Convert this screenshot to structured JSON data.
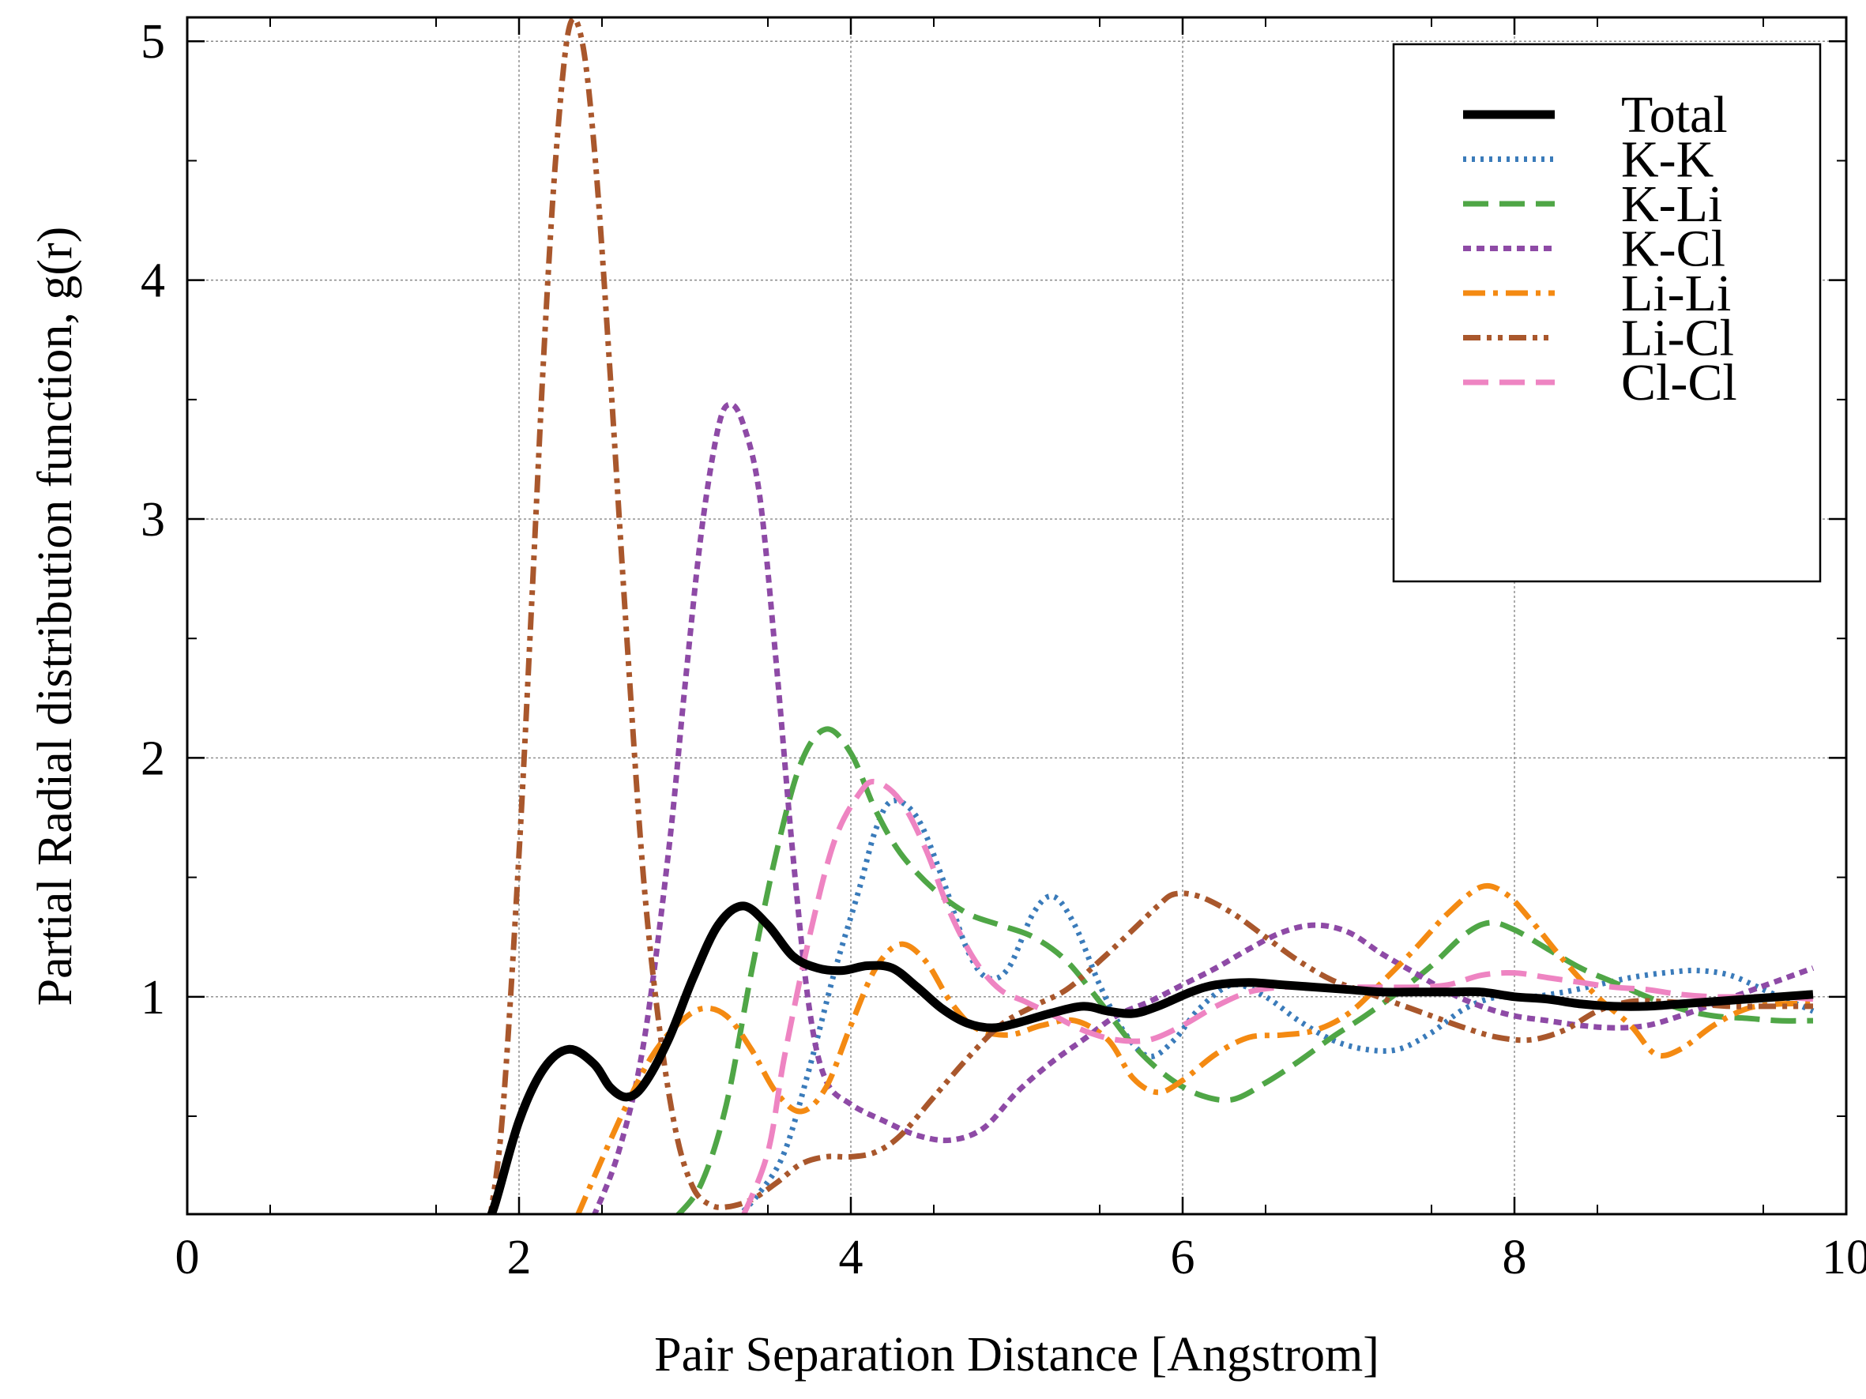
{
  "chart_data": {
    "type": "line",
    "title": "",
    "xlabel": "Pair Separation Distance [Angstrom]",
    "ylabel": "Partial Radial distribution function, g(r)",
    "xlim": [
      0,
      10
    ],
    "ylim": [
      0.09,
      5.1
    ],
    "xticks": [
      0,
      2,
      4,
      6,
      8,
      10
    ],
    "xtick_labels": [
      "0",
      "2",
      "4",
      "6",
      "8",
      "10"
    ],
    "yticks": [
      1,
      2,
      3,
      4,
      5
    ],
    "ytick_labels": [
      "1",
      "2",
      "3",
      "4",
      "5"
    ],
    "grid": true,
    "legend_position": "top-right",
    "series": [
      {
        "name": "Total",
        "color": "#000000",
        "style": "solid",
        "points": [
          [
            1.78,
            0.02
          ],
          [
            1.85,
            0.12
          ],
          [
            2.0,
            0.48
          ],
          [
            2.15,
            0.7
          ],
          [
            2.3,
            0.78
          ],
          [
            2.45,
            0.72
          ],
          [
            2.55,
            0.62
          ],
          [
            2.65,
            0.58
          ],
          [
            2.75,
            0.63
          ],
          [
            2.9,
            0.82
          ],
          [
            3.05,
            1.08
          ],
          [
            3.2,
            1.3
          ],
          [
            3.35,
            1.38
          ],
          [
            3.5,
            1.3
          ],
          [
            3.65,
            1.17
          ],
          [
            3.8,
            1.12
          ],
          [
            3.95,
            1.11
          ],
          [
            4.1,
            1.13
          ],
          [
            4.25,
            1.12
          ],
          [
            4.4,
            1.04
          ],
          [
            4.55,
            0.95
          ],
          [
            4.7,
            0.89
          ],
          [
            4.85,
            0.87
          ],
          [
            5.0,
            0.89
          ],
          [
            5.2,
            0.93
          ],
          [
            5.4,
            0.96
          ],
          [
            5.55,
            0.94
          ],
          [
            5.7,
            0.93
          ],
          [
            5.85,
            0.96
          ],
          [
            6.05,
            1.02
          ],
          [
            6.2,
            1.05
          ],
          [
            6.4,
            1.06
          ],
          [
            6.6,
            1.05
          ],
          [
            6.8,
            1.04
          ],
          [
            7.0,
            1.03
          ],
          [
            7.2,
            1.02
          ],
          [
            7.4,
            1.02
          ],
          [
            7.6,
            1.02
          ],
          [
            7.8,
            1.02
          ],
          [
            8.0,
            1.0
          ],
          [
            8.2,
            0.99
          ],
          [
            8.4,
            0.97
          ],
          [
            8.6,
            0.96
          ],
          [
            8.8,
            0.96
          ],
          [
            9.0,
            0.97
          ],
          [
            9.2,
            0.98
          ],
          [
            9.4,
            0.99
          ],
          [
            9.6,
            1.0
          ],
          [
            9.8,
            1.01
          ]
        ]
      },
      {
        "name": "K-K",
        "color": "#3a7bba",
        "style": "dotted",
        "points": [
          [
            3.28,
            0.05
          ],
          [
            3.45,
            0.18
          ],
          [
            3.6,
            0.35
          ],
          [
            3.75,
            0.7
          ],
          [
            3.9,
            1.1
          ],
          [
            4.05,
            1.45
          ],
          [
            4.15,
            1.7
          ],
          [
            4.25,
            1.82
          ],
          [
            4.4,
            1.75
          ],
          [
            4.55,
            1.5
          ],
          [
            4.7,
            1.2
          ],
          [
            4.82,
            1.08
          ],
          [
            4.95,
            1.12
          ],
          [
            5.1,
            1.35
          ],
          [
            5.22,
            1.42
          ],
          [
            5.35,
            1.3
          ],
          [
            5.5,
            1.05
          ],
          [
            5.65,
            0.85
          ],
          [
            5.8,
            0.75
          ],
          [
            5.95,
            0.82
          ],
          [
            6.1,
            0.95
          ],
          [
            6.3,
            1.05
          ],
          [
            6.5,
            1.0
          ],
          [
            6.7,
            0.9
          ],
          [
            6.9,
            0.82
          ],
          [
            7.1,
            0.78
          ],
          [
            7.3,
            0.78
          ],
          [
            7.5,
            0.85
          ],
          [
            7.7,
            0.95
          ],
          [
            7.9,
            1.0
          ],
          [
            8.1,
            1.0
          ],
          [
            8.3,
            1.02
          ],
          [
            8.5,
            1.05
          ],
          [
            8.7,
            1.08
          ],
          [
            8.9,
            1.1
          ],
          [
            9.1,
            1.11
          ],
          [
            9.3,
            1.09
          ],
          [
            9.5,
            1.03
          ],
          [
            9.7,
            0.97
          ],
          [
            9.8,
            0.94
          ]
        ]
      },
      {
        "name": "K-Li",
        "color": "#4fa646",
        "style": "dashed",
        "points": [
          [
            2.95,
            0.08
          ],
          [
            3.1,
            0.22
          ],
          [
            3.25,
            0.55
          ],
          [
            3.4,
            1.1
          ],
          [
            3.55,
            1.6
          ],
          [
            3.7,
            1.98
          ],
          [
            3.85,
            2.12
          ],
          [
            4.0,
            2.02
          ],
          [
            4.15,
            1.78
          ],
          [
            4.3,
            1.6
          ],
          [
            4.5,
            1.45
          ],
          [
            4.7,
            1.35
          ],
          [
            4.9,
            1.3
          ],
          [
            5.1,
            1.25
          ],
          [
            5.3,
            1.15
          ],
          [
            5.5,
            0.98
          ],
          [
            5.7,
            0.8
          ],
          [
            5.9,
            0.67
          ],
          [
            6.1,
            0.59
          ],
          [
            6.3,
            0.57
          ],
          [
            6.5,
            0.64
          ],
          [
            6.7,
            0.73
          ],
          [
            6.9,
            0.83
          ],
          [
            7.1,
            0.92
          ],
          [
            7.3,
            1.02
          ],
          [
            7.5,
            1.13
          ],
          [
            7.7,
            1.26
          ],
          [
            7.85,
            1.31
          ],
          [
            8.0,
            1.28
          ],
          [
            8.2,
            1.2
          ],
          [
            8.4,
            1.12
          ],
          [
            8.6,
            1.06
          ],
          [
            8.8,
            1.0
          ],
          [
            9.0,
            0.95
          ],
          [
            9.2,
            0.92
          ],
          [
            9.4,
            0.91
          ],
          [
            9.6,
            0.9
          ],
          [
            9.8,
            0.9
          ]
        ]
      },
      {
        "name": "K-Cl",
        "color": "#8e4aa6",
        "style": "dashed-short",
        "points": [
          [
            2.45,
            0.08
          ],
          [
            2.6,
            0.35
          ],
          [
            2.75,
            0.8
          ],
          [
            2.9,
            1.6
          ],
          [
            3.0,
            2.3
          ],
          [
            3.1,
            2.95
          ],
          [
            3.2,
            3.38
          ],
          [
            3.27,
            3.48
          ],
          [
            3.35,
            3.4
          ],
          [
            3.45,
            3.1
          ],
          [
            3.55,
            2.4
          ],
          [
            3.65,
            1.6
          ],
          [
            3.75,
            0.95
          ],
          [
            3.85,
            0.65
          ],
          [
            4.0,
            0.55
          ],
          [
            4.2,
            0.48
          ],
          [
            4.4,
            0.42
          ],
          [
            4.6,
            0.4
          ],
          [
            4.8,
            0.45
          ],
          [
            5.0,
            0.6
          ],
          [
            5.2,
            0.72
          ],
          [
            5.4,
            0.82
          ],
          [
            5.6,
            0.92
          ],
          [
            5.8,
            0.98
          ],
          [
            6.0,
            1.05
          ],
          [
            6.2,
            1.12
          ],
          [
            6.4,
            1.2
          ],
          [
            6.6,
            1.27
          ],
          [
            6.8,
            1.3
          ],
          [
            7.0,
            1.27
          ],
          [
            7.2,
            1.18
          ],
          [
            7.4,
            1.1
          ],
          [
            7.6,
            1.02
          ],
          [
            7.8,
            0.96
          ],
          [
            8.0,
            0.92
          ],
          [
            8.2,
            0.9
          ],
          [
            8.4,
            0.88
          ],
          [
            8.6,
            0.87
          ],
          [
            8.8,
            0.88
          ],
          [
            9.0,
            0.92
          ],
          [
            9.2,
            0.97
          ],
          [
            9.4,
            1.02
          ],
          [
            9.6,
            1.07
          ],
          [
            9.8,
            1.12
          ]
        ]
      },
      {
        "name": "Li-Li",
        "color": "#f48a12",
        "style": "dashdot",
        "points": [
          [
            2.35,
            0.08
          ],
          [
            2.5,
            0.32
          ],
          [
            2.65,
            0.55
          ],
          [
            2.8,
            0.75
          ],
          [
            2.95,
            0.88
          ],
          [
            3.1,
            0.95
          ],
          [
            3.25,
            0.92
          ],
          [
            3.4,
            0.78
          ],
          [
            3.55,
            0.6
          ],
          [
            3.7,
            0.52
          ],
          [
            3.85,
            0.62
          ],
          [
            4.0,
            0.88
          ],
          [
            4.15,
            1.12
          ],
          [
            4.3,
            1.22
          ],
          [
            4.45,
            1.15
          ],
          [
            4.6,
            0.98
          ],
          [
            4.75,
            0.87
          ],
          [
            4.95,
            0.84
          ],
          [
            5.15,
            0.88
          ],
          [
            5.35,
            0.9
          ],
          [
            5.55,
            0.82
          ],
          [
            5.7,
            0.66
          ],
          [
            5.85,
            0.6
          ],
          [
            6.0,
            0.65
          ],
          [
            6.2,
            0.76
          ],
          [
            6.4,
            0.83
          ],
          [
            6.6,
            0.84
          ],
          [
            6.8,
            0.86
          ],
          [
            7.0,
            0.93
          ],
          [
            7.2,
            1.06
          ],
          [
            7.4,
            1.2
          ],
          [
            7.6,
            1.35
          ],
          [
            7.8,
            1.46
          ],
          [
            7.95,
            1.43
          ],
          [
            8.1,
            1.32
          ],
          [
            8.3,
            1.15
          ],
          [
            8.5,
            1.0
          ],
          [
            8.7,
            0.88
          ],
          [
            8.85,
            0.76
          ],
          [
            9.0,
            0.78
          ],
          [
            9.2,
            0.88
          ],
          [
            9.4,
            0.95
          ],
          [
            9.6,
            0.97
          ],
          [
            9.8,
            0.97
          ]
        ]
      },
      {
        "name": "Li-Cl",
        "color": "#a9572c",
        "style": "dashdotdot",
        "points": [
          [
            1.82,
            0.05
          ],
          [
            1.9,
            0.5
          ],
          [
            2.0,
            1.6
          ],
          [
            2.08,
            2.7
          ],
          [
            2.15,
            3.7
          ],
          [
            2.22,
            4.5
          ],
          [
            2.3,
            5.05
          ],
          [
            2.38,
            5.0
          ],
          [
            2.46,
            4.5
          ],
          [
            2.55,
            3.6
          ],
          [
            2.65,
            2.5
          ],
          [
            2.75,
            1.5
          ],
          [
            2.85,
            0.85
          ],
          [
            2.95,
            0.42
          ],
          [
            3.05,
            0.2
          ],
          [
            3.15,
            0.13
          ],
          [
            3.25,
            0.12
          ],
          [
            3.4,
            0.15
          ],
          [
            3.55,
            0.22
          ],
          [
            3.7,
            0.3
          ],
          [
            3.85,
            0.33
          ],
          [
            4.0,
            0.33
          ],
          [
            4.15,
            0.35
          ],
          [
            4.3,
            0.42
          ],
          [
            4.5,
            0.58
          ],
          [
            4.7,
            0.74
          ],
          [
            4.9,
            0.88
          ],
          [
            5.1,
            0.96
          ],
          [
            5.3,
            1.03
          ],
          [
            5.5,
            1.15
          ],
          [
            5.7,
            1.28
          ],
          [
            5.85,
            1.38
          ],
          [
            5.95,
            1.43
          ],
          [
            6.1,
            1.42
          ],
          [
            6.3,
            1.35
          ],
          [
            6.5,
            1.25
          ],
          [
            6.7,
            1.15
          ],
          [
            6.9,
            1.07
          ],
          [
            7.1,
            1.02
          ],
          [
            7.3,
            0.97
          ],
          [
            7.5,
            0.92
          ],
          [
            7.7,
            0.87
          ],
          [
            7.9,
            0.83
          ],
          [
            8.1,
            0.82
          ],
          [
            8.3,
            0.86
          ],
          [
            8.5,
            0.94
          ],
          [
            8.7,
            0.98
          ],
          [
            8.9,
            0.98
          ],
          [
            9.1,
            0.97
          ],
          [
            9.3,
            0.96
          ],
          [
            9.5,
            0.96
          ],
          [
            9.7,
            0.96
          ],
          [
            9.8,
            0.96
          ]
        ]
      },
      {
        "name": "Cl-Cl",
        "color": "#ee84c2",
        "style": "dashed",
        "points": [
          [
            3.35,
            0.08
          ],
          [
            3.5,
            0.35
          ],
          [
            3.6,
            0.75
          ],
          [
            3.75,
            1.25
          ],
          [
            3.9,
            1.65
          ],
          [
            4.05,
            1.85
          ],
          [
            4.15,
            1.9
          ],
          [
            4.3,
            1.82
          ],
          [
            4.45,
            1.62
          ],
          [
            4.6,
            1.35
          ],
          [
            4.75,
            1.15
          ],
          [
            4.9,
            1.03
          ],
          [
            5.05,
            0.98
          ],
          [
            5.2,
            0.93
          ],
          [
            5.4,
            0.86
          ],
          [
            5.6,
            0.82
          ],
          [
            5.8,
            0.82
          ],
          [
            6.0,
            0.88
          ],
          [
            6.2,
            0.96
          ],
          [
            6.4,
            1.02
          ],
          [
            6.6,
            1.04
          ],
          [
            6.8,
            1.04
          ],
          [
            7.0,
            1.04
          ],
          [
            7.2,
            1.04
          ],
          [
            7.4,
            1.04
          ],
          [
            7.6,
            1.05
          ],
          [
            7.8,
            1.09
          ],
          [
            8.0,
            1.1
          ],
          [
            8.2,
            1.08
          ],
          [
            8.4,
            1.06
          ],
          [
            8.6,
            1.04
          ],
          [
            8.8,
            1.03
          ],
          [
            9.0,
            1.01
          ],
          [
            9.2,
            1.0
          ],
          [
            9.4,
            1.0
          ],
          [
            9.6,
            1.0
          ],
          [
            9.8,
            0.99
          ]
        ]
      }
    ]
  }
}
